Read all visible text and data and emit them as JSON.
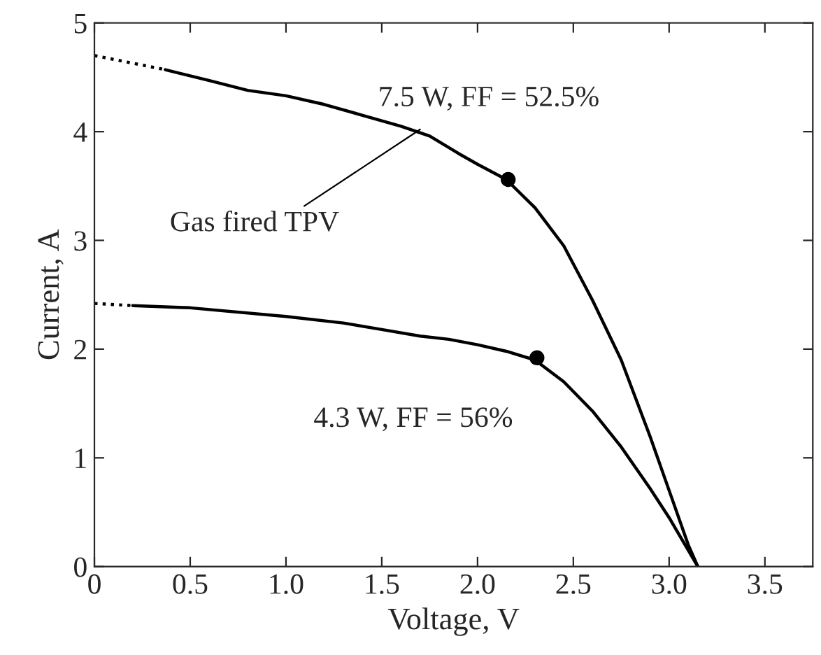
{
  "chart_data": {
    "type": "line",
    "xlabel": "Voltage, V",
    "ylabel": "Current, A",
    "xlim": [
      0,
      3.75
    ],
    "ylim": [
      0,
      5
    ],
    "xticks": [
      0,
      0.5,
      {
        "value": 1,
        "label": "1.0"
      },
      1.5,
      {
        "value": 2,
        "label": "2.0"
      },
      2.5,
      {
        "value": 3,
        "label": "3.0"
      },
      3.5
    ],
    "yticks": [
      0,
      1,
      2,
      3,
      4,
      5
    ],
    "grid": false,
    "legend": false,
    "series": [
      {
        "color": "#000000",
        "line_style": "dotted",
        "x": [
          0,
          0.37
        ],
        "values": [
          4.7,
          4.57
        ]
      },
      {
        "color": "#000000",
        "line_style": "solid",
        "x": [
          0.37,
          0.6,
          0.8,
          1.0,
          1.2,
          1.4,
          1.6,
          1.75,
          1.9,
          2.0,
          2.15,
          2.3,
          2.45,
          2.6,
          2.75,
          2.9,
          3.0,
          3.1,
          3.15
        ],
        "values": [
          4.57,
          4.47,
          4.38,
          4.33,
          4.25,
          4.15,
          4.05,
          3.96,
          3.8,
          3.7,
          3.56,
          3.3,
          2.95,
          2.45,
          1.9,
          1.2,
          0.7,
          0.2,
          0
        ]
      },
      {
        "color": "#000000",
        "line_style": "dotted",
        "x": [
          0,
          0.2
        ],
        "values": [
          2.42,
          2.4
        ]
      },
      {
        "color": "#000000",
        "line_style": "solid",
        "x": [
          0.2,
          0.5,
          1.0,
          1.3,
          1.5,
          1.7,
          1.85,
          2.0,
          2.15,
          2.3,
          2.45,
          2.6,
          2.75,
          2.9,
          3.0,
          3.1,
          3.15
        ],
        "values": [
          2.4,
          2.38,
          2.3,
          2.24,
          2.18,
          2.12,
          2.09,
          2.04,
          1.98,
          1.9,
          1.7,
          1.43,
          1.1,
          0.72,
          0.45,
          0.15,
          0
        ]
      },
      {
        "type": "scatter",
        "color": "#000000",
        "marker": "circle",
        "x": [
          2.16,
          2.31
        ],
        "values": [
          3.56,
          1.92
        ]
      }
    ],
    "annotations": [
      "7.5 W, FF = 52.5%",
      {
        "text": "Gas fired TPV",
        "x": 1.7,
        "y": 4.02
      },
      "4.3 W, FF = 56%"
    ]
  }
}
